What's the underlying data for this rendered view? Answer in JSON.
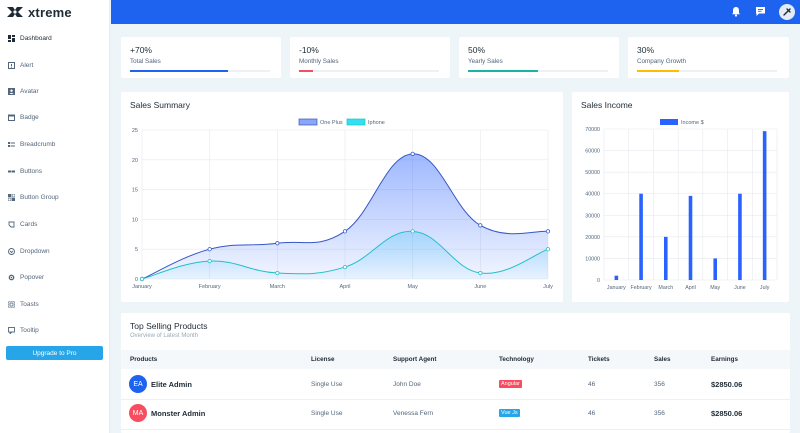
{
  "brand": {
    "name": "xtreme"
  },
  "sidebar": {
    "items": [
      {
        "label": "Dashboard",
        "icon": "dashboard-icon"
      },
      {
        "label": "Alert",
        "icon": "alert-icon"
      },
      {
        "label": "Avatar",
        "icon": "avatar-icon"
      },
      {
        "label": "Badge",
        "icon": "badge-icon"
      },
      {
        "label": "Breadcrumb",
        "icon": "breadcrumb-icon"
      },
      {
        "label": "Buttons",
        "icon": "buttons-icon"
      },
      {
        "label": "Button Group",
        "icon": "button-group-icon"
      },
      {
        "label": "Cards",
        "icon": "cards-icon"
      },
      {
        "label": "Dropdown",
        "icon": "dropdown-icon"
      },
      {
        "label": "Popover",
        "icon": "popover-icon"
      },
      {
        "label": "Toasts",
        "icon": "toasts-icon"
      },
      {
        "label": "Tooltip",
        "icon": "tooltip-icon"
      }
    ],
    "upgrade_label": "Upgrade to Pro"
  },
  "topbar": {
    "icons": [
      "bell-icon",
      "message-icon",
      "user-avatar-icon"
    ]
  },
  "stats": [
    {
      "value": "+70%",
      "label": "Total Sales",
      "progress": 0.7,
      "color": "#1e63f0"
    },
    {
      "value": "-10%",
      "label": "Monthly Sales",
      "progress": 0.1,
      "color": "#f64e60"
    },
    {
      "value": "50%",
      "label": "Yearly Sales",
      "progress": 0.5,
      "color": "#1bb3a4"
    },
    {
      "value": "30%",
      "label": "Company Growth",
      "progress": 0.3,
      "color": "#ffbc00"
    }
  ],
  "sales_summary": {
    "title": "Sales Summary"
  },
  "sales_income": {
    "title": "Sales Income"
  },
  "chart_data": [
    {
      "type": "area",
      "title": "Sales Summary",
      "categories": [
        "January",
        "February",
        "March",
        "April",
        "May",
        "June",
        "July"
      ],
      "series": [
        {
          "name": "One Plus",
          "values": [
            0,
            5,
            6,
            8,
            21,
            9,
            8
          ],
          "color": "#2962ff"
        },
        {
          "name": "Iphone",
          "values": [
            0,
            3,
            1,
            2,
            8,
            1,
            5
          ],
          "color": "#4fc3f7"
        }
      ],
      "ylim": [
        0,
        25
      ],
      "yticks": [
        0,
        5,
        10,
        15,
        20,
        25
      ],
      "grid": true,
      "legend": "top-center"
    },
    {
      "type": "bar",
      "title": "Sales Income",
      "categories": [
        "January",
        "February",
        "March",
        "April",
        "May",
        "June",
        "July"
      ],
      "series": [
        {
          "name": "Income $",
          "values": [
            2000,
            40000,
            20000,
            39000,
            10000,
            40000,
            69000
          ],
          "color": "#2962ff"
        }
      ],
      "ylim": [
        0,
        70000
      ],
      "yticks": [
        0,
        10000,
        20000,
        30000,
        40000,
        50000,
        60000,
        70000
      ],
      "grid": true,
      "legend": "top-center"
    }
  ],
  "top_selling": {
    "title": "Top Selling Products",
    "subtitle": "Overview of Latest Month",
    "columns": [
      "Products",
      "License",
      "Support Agent",
      "Technology",
      "Tickets",
      "Sales",
      "Earnings"
    ],
    "rows": [
      {
        "initials": "EA",
        "avatar_color": "#1e63f0",
        "product": "Elite Admin",
        "license": "Single Use",
        "agent": "John Doe",
        "technology": "Angular",
        "tech_color": "#f64e60",
        "tickets": "46",
        "sales": "356",
        "earnings": "$2850.06"
      },
      {
        "initials": "MA",
        "avatar_color": "#f64e60",
        "product": "Monster Admin",
        "license": "Single Use",
        "agent": "Venessa Fern",
        "technology": "Vue Js",
        "tech_color": "#26a5e9",
        "tickets": "46",
        "sales": "356",
        "earnings": "$2850.06"
      }
    ]
  }
}
